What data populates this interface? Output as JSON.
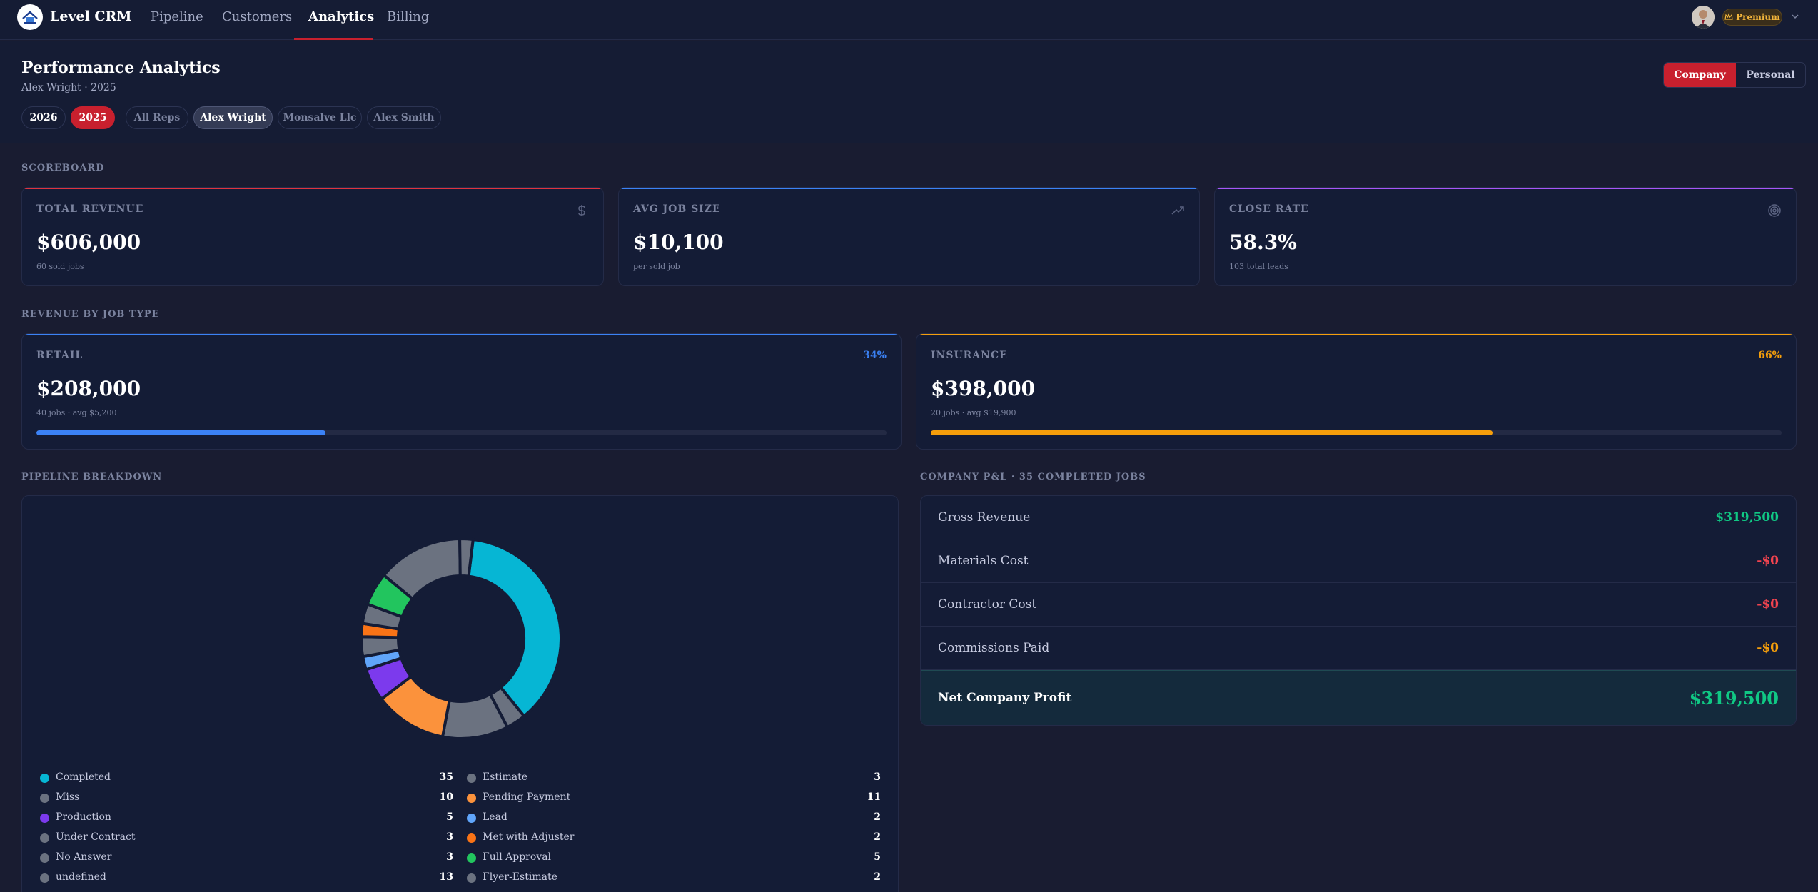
{
  "app": {
    "brand": "Level CRM"
  },
  "nav": {
    "links": [
      "Pipeline",
      "Customers",
      "Analytics",
      "Billing"
    ],
    "active": "Analytics",
    "premium_label": "Premium"
  },
  "header": {
    "title": "Performance Analytics",
    "subtitle": "Alex Wright · 2025",
    "year_pills": [
      "2026",
      "2025"
    ],
    "rep_pills": [
      "All Reps",
      "Alex Wright",
      "Monsalve Llc",
      "Alex Smith"
    ],
    "selected_year": "2025",
    "selected_rep": "Alex Wright",
    "toggle": {
      "company": "Company",
      "personal": "Personal",
      "active": "Company"
    }
  },
  "scoreboard": {
    "label": "SCOREBOARD",
    "cards": [
      {
        "label": "TOTAL REVENUE",
        "value": "$606,000",
        "sub": "60 sold jobs",
        "accent": "#e0333f",
        "icon": "dollar-icon"
      },
      {
        "label": "AVG JOB SIZE",
        "value": "$10,100",
        "sub": "per sold job",
        "accent": "#3b82f6",
        "icon": "trending-up-icon"
      },
      {
        "label": "CLOSE RATE",
        "value": "58.3%",
        "sub": "103 total leads",
        "accent": "#a855f7",
        "icon": "target-icon"
      }
    ]
  },
  "job_type": {
    "label": "REVENUE BY JOB TYPE",
    "cards": [
      {
        "label": "RETAIL",
        "value": "$208,000",
        "sub": "40 jobs · avg $5,200",
        "pct": "34%",
        "fraction": 0.34,
        "accent": "#3b82f6"
      },
      {
        "label": "INSURANCE",
        "value": "$398,000",
        "sub": "20 jobs · avg $19,900",
        "pct": "66%",
        "fraction": 0.66,
        "accent": "#f59e0b"
      }
    ]
  },
  "pipeline": {
    "label": "PIPELINE BREAKDOWN",
    "chart_data": {
      "type": "pie",
      "categories": [
        "Completed",
        "Estimate",
        "Miss",
        "Pending Payment",
        "Production",
        "Lead",
        "Under Contract",
        "Met with Adjuster",
        "No Answer",
        "Full Approval",
        "undefined",
        "Flyer-Estimate"
      ],
      "values": [
        35,
        3,
        10,
        11,
        5,
        2,
        3,
        2,
        3,
        5,
        13,
        2
      ],
      "colors": [
        "#06b6d4",
        "#6b7280",
        "#6b7280",
        "#fb923c",
        "#7c3aed",
        "#60a5fa",
        "#6b7280",
        "#f97316",
        "#6b7280",
        "#22c55e",
        "#6b7280",
        "#6b7280"
      ]
    },
    "legend_left": [
      {
        "label": "Completed",
        "count": "35",
        "color": "#06b6d4"
      },
      {
        "label": "Miss",
        "count": "10",
        "color": "#6b7280"
      },
      {
        "label": "Production",
        "count": "5",
        "color": "#7c3aed"
      },
      {
        "label": "Under Contract",
        "count": "3",
        "color": "#6b7280"
      },
      {
        "label": "No Answer",
        "count": "3",
        "color": "#6b7280"
      },
      {
        "label": "undefined",
        "count": "13",
        "color": "#6b7280"
      }
    ],
    "legend_right": [
      {
        "label": "Estimate",
        "count": "3",
        "color": "#6b7280"
      },
      {
        "label": "Pending Payment",
        "count": "11",
        "color": "#fb923c"
      },
      {
        "label": "Lead",
        "count": "2",
        "color": "#60a5fa"
      },
      {
        "label": "Met with Adjuster",
        "count": "2",
        "color": "#f97316"
      },
      {
        "label": "Full Approval",
        "count": "5",
        "color": "#22c55e"
      },
      {
        "label": "Flyer-Estimate",
        "count": "2",
        "color": "#6b7280"
      }
    ]
  },
  "pl": {
    "label": "COMPANY P&L · 35 COMPLETED JOBS",
    "rows": [
      {
        "label": "Gross Revenue",
        "value": "$319,500",
        "color": "#10c884"
      },
      {
        "label": "Materials Cost",
        "value": "-$0",
        "color": "#f0434f"
      },
      {
        "label": "Contractor Cost",
        "value": "-$0",
        "color": "#f0434f"
      },
      {
        "label": "Commissions Paid",
        "value": "-$0",
        "color": "#f59e0b"
      }
    ],
    "net": {
      "label": "Net Company Profit",
      "value": "$319,500"
    }
  }
}
